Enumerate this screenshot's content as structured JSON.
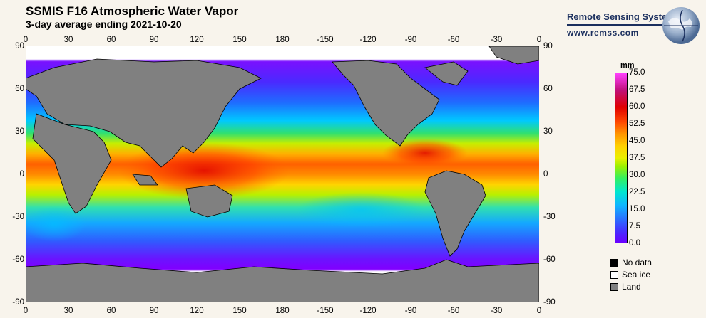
{
  "header": {
    "title": "SSMIS F16 Atmospheric Water Vapor",
    "subtitle": "3-day average ending 2021-10-20"
  },
  "brand": {
    "name": "Remote Sensing Systems",
    "url": "www.remss.com"
  },
  "axes": {
    "lon_ticks": [
      "0",
      "30",
      "60",
      "90",
      "120",
      "150",
      "180",
      "-150",
      "-120",
      "-90",
      "-60",
      "-30",
      "0"
    ],
    "lat_ticks": [
      "90",
      "60",
      "30",
      "0",
      "-30",
      "-60",
      "-90"
    ]
  },
  "colorbar": {
    "unit": "mm",
    "ticks": [
      "75.0",
      "67.5",
      "60.0",
      "52.5",
      "45.0",
      "37.5",
      "30.0",
      "22.5",
      "15.0",
      "7.5",
      "0.0"
    ],
    "range": [
      0,
      75
    ]
  },
  "legend": {
    "no_data": "No data",
    "sea_ice": "Sea ice",
    "land": "Land"
  },
  "colors": {
    "land": "#808080",
    "sea_ice": "#ffffff",
    "no_data": "#000000"
  }
}
